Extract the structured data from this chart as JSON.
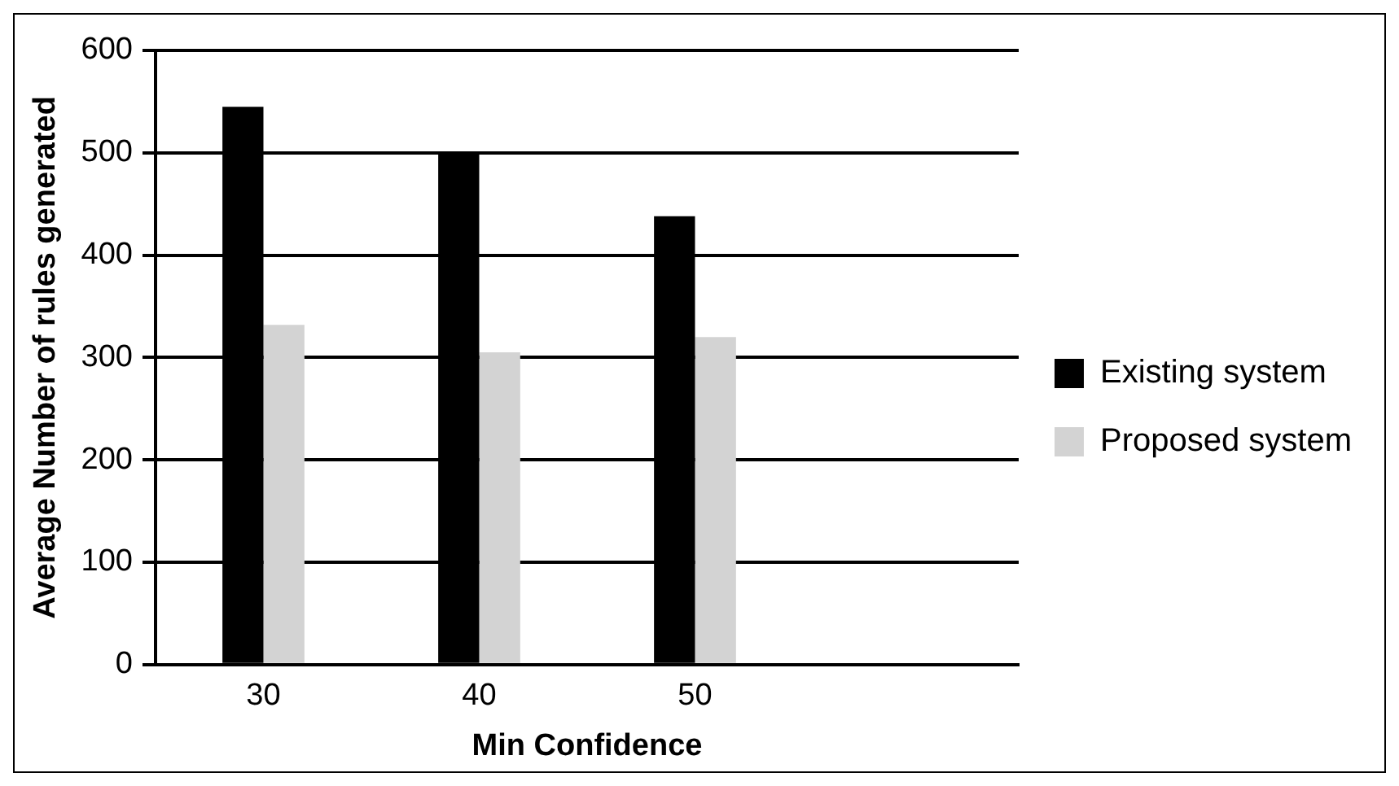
{
  "chart_data": {
    "type": "bar",
    "xlabel": "Min Confidence",
    "ylabel": "Average Number of rules generated",
    "categories": [
      "30",
      "40",
      "50",
      null
    ],
    "series": [
      {
        "name": "Existing system",
        "color": "#000000",
        "values": [
          545,
          500,
          438,
          null
        ]
      },
      {
        "name": "Proposed system",
        "color": "#d3d3d3",
        "values": [
          332,
          305,
          320,
          null
        ]
      }
    ],
    "ylim": [
      0,
      600
    ],
    "yticks": [
      0,
      100,
      200,
      300,
      400,
      500,
      600
    ],
    "grid": "y",
    "legend": "right"
  }
}
